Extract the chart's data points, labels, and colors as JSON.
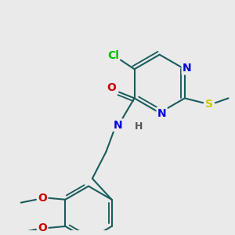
{
  "bg_color": "#eaeaea",
  "bond_color": "#1a5c5c",
  "bond_width": 1.5,
  "atom_colors": {
    "N": "#0000dd",
    "Cl": "#00bb00",
    "O": "#cc0000",
    "S": "#cccc00",
    "C": "#1a5c5c",
    "H": "#555555"
  },
  "fontsize": 10
}
